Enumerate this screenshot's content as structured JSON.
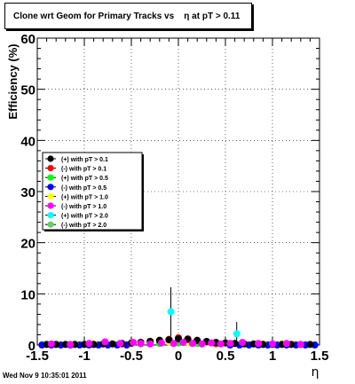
{
  "title": "Clone wrt Geom for Primary Tracks vs    η at pT > 0.11",
  "footer": "Wed Nov  9 10:35:01 2011",
  "chart_data": {
    "type": "scatter",
    "xlabel": "η",
    "ylabel": "Efficiency (%)",
    "xlim": [
      -1.5,
      1.5
    ],
    "ylim": [
      0,
      60
    ],
    "x_ticks": [
      "-1.5",
      "-1",
      "-0.5",
      "0",
      "0.5",
      "1",
      "1.5"
    ],
    "y_ticks": [
      "0",
      "10",
      "20",
      "30",
      "40",
      "50",
      "60"
    ],
    "grid": true,
    "legend_position": "left-middle",
    "series": [
      {
        "name": "(+) with pT > 0.1",
        "color": "#000000",
        "x": [
          -1.4,
          -1.3,
          -1.2,
          -1.1,
          -1.0,
          -0.9,
          -0.8,
          -0.7,
          -0.6,
          -0.5,
          -0.4,
          -0.3,
          -0.2,
          -0.1,
          0.0,
          0.1,
          0.2,
          0.3,
          0.4,
          0.5,
          0.6,
          0.7,
          0.8,
          0.9,
          1.0,
          1.1,
          1.2,
          1.3,
          1.4
        ],
        "y": [
          0.1,
          0.1,
          0.1,
          0.1,
          0.1,
          0.1,
          0.2,
          0.2,
          0.3,
          0.4,
          0.5,
          0.7,
          0.9,
          1.0,
          1.2,
          1.1,
          0.9,
          0.7,
          0.5,
          0.4,
          0.3,
          0.2,
          0.2,
          0.1,
          0.1,
          0.1,
          0.1,
          0.1,
          0.1
        ]
      },
      {
        "name": "(-) with pT > 0.1",
        "color": "#ff0000",
        "x": [
          -0.6,
          -0.5,
          -0.4,
          -0.3,
          -0.2,
          -0.1,
          0.0,
          0.1,
          0.2,
          0.3,
          0.4
        ],
        "y": [
          0.2,
          0.3,
          0.5,
          0.7,
          0.9,
          1.1,
          1.4,
          1.2,
          0.9,
          0.6,
          0.3
        ]
      },
      {
        "name": "(+) with pT > 0.5",
        "color": "#00ff00",
        "x": [
          -0.4,
          -0.2,
          0.0,
          0.2,
          0.4
        ],
        "y": [
          0.2,
          0.3,
          0.4,
          0.3,
          0.2
        ]
      },
      {
        "name": "(-) with pT > 0.5",
        "color": "#0000ff",
        "x": [
          -1.45,
          -1.35,
          -1.25,
          -1.15,
          -1.05,
          -0.95,
          -0.85,
          -0.75,
          -0.65,
          -0.55,
          0.55,
          0.65,
          0.75,
          0.85,
          0.95,
          1.05,
          1.15,
          1.25,
          1.35,
          1.45
        ],
        "y": [
          0.0,
          0.0,
          0.0,
          0.0,
          0.0,
          0.0,
          0.0,
          0.0,
          0.0,
          0.0,
          0.0,
          0.0,
          0.0,
          0.0,
          0.0,
          0.0,
          0.0,
          0.0,
          0.0,
          0.0
        ]
      },
      {
        "name": "(+) with pT > 1.0",
        "color": "#ffff00",
        "x": [
          -1.3,
          -1.1,
          -0.9,
          -0.7,
          -0.5,
          -0.3,
          -0.1,
          0.1,
          0.3,
          0.5,
          0.7,
          0.9,
          1.1,
          1.3
        ],
        "y": [
          0.1,
          0.2,
          0.2,
          0.3,
          0.4,
          0.5,
          0.6,
          0.6,
          0.5,
          0.4,
          0.3,
          0.2,
          0.2,
          0.1
        ]
      },
      {
        "name": "(-) with pT > 1.0",
        "color": "#ff00ff",
        "x": [
          -1.35,
          -1.15,
          -0.95,
          -0.78,
          -0.62,
          -0.48,
          -0.4,
          -0.3,
          -0.18,
          -0.05,
          0.05,
          0.15,
          0.25,
          0.35,
          0.45,
          0.55,
          0.68,
          0.85,
          1.0,
          1.15,
          1.3
        ],
        "y": [
          0.2,
          0.1,
          0.3,
          0.6,
          0.3,
          0.5,
          0.3,
          0.2,
          0.4,
          0.3,
          0.5,
          0.3,
          0.2,
          0.4,
          0.2,
          0.3,
          0.5,
          0.3,
          0.2,
          0.3,
          0.1
        ]
      },
      {
        "name": "(+) with pT > 2.0",
        "color": "#00ffff",
        "x": [
          -0.08,
          0.62
        ],
        "y": [
          6.5,
          2.2
        ],
        "err": [
          4.8,
          2.3
        ]
      },
      {
        "name": "(-) with pT > 2.0",
        "color": "#66cc66",
        "x": [],
        "y": []
      }
    ]
  }
}
